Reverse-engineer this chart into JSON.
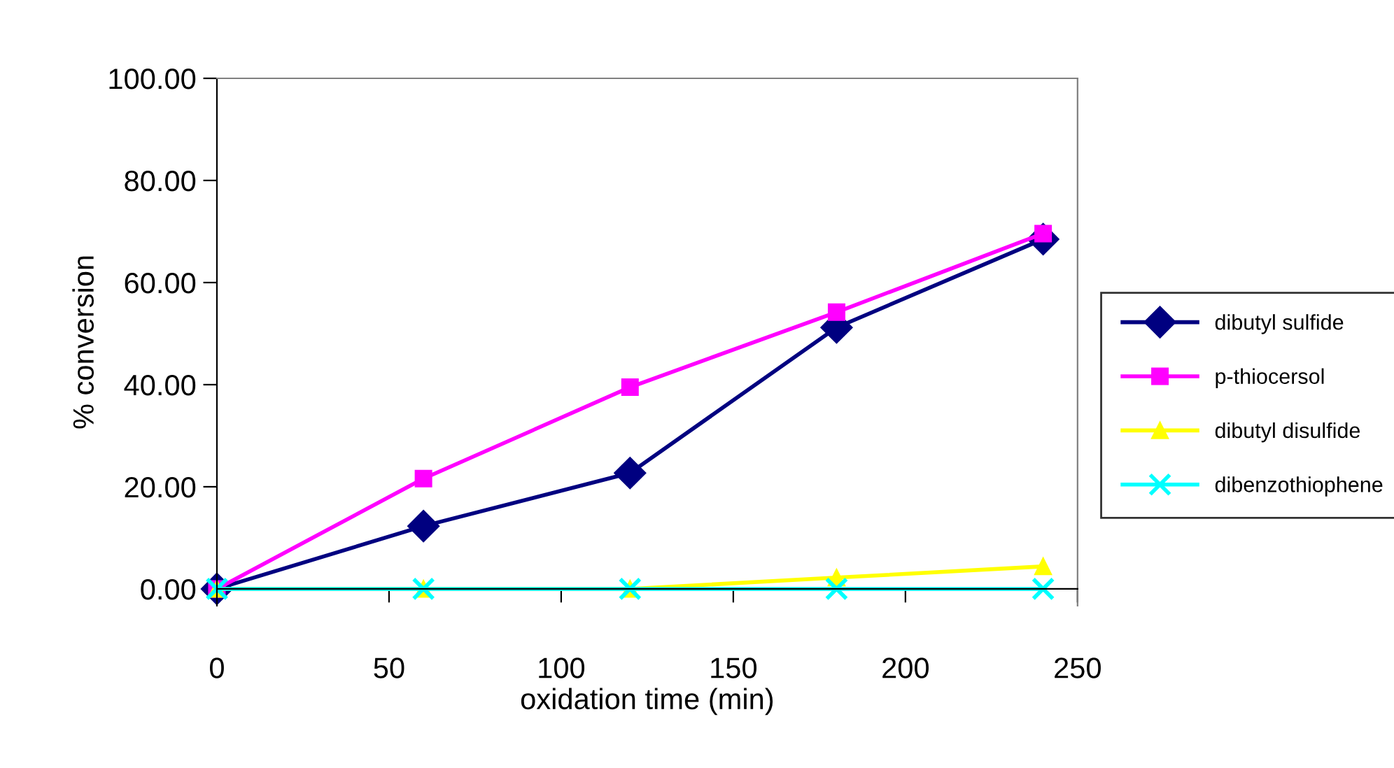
{
  "chart_data": {
    "type": "line",
    "xlabel": "oxidation time (min)",
    "ylabel": "% conversion",
    "x": [
      0,
      60,
      120,
      180,
      240
    ],
    "series": [
      {
        "name": "dibutyl sulfide",
        "color": "#000080",
        "marker": "diamond",
        "values": [
          0,
          12.3,
          22.7,
          51.2,
          68.5
        ]
      },
      {
        "name": "p-thiocersol",
        "color": "#ff00ff",
        "marker": "square",
        "values": [
          0,
          21.6,
          39.5,
          54.2,
          69.6
        ]
      },
      {
        "name": "dibutyl disulfide",
        "color": "#ffff00",
        "marker": "triangle",
        "values": [
          0,
          0,
          0,
          2.2,
          4.4
        ]
      },
      {
        "name": "dibenzothiophene",
        "color": "#00ffff",
        "marker": "cross",
        "values": [
          0,
          0,
          0,
          0,
          0
        ]
      }
    ],
    "xlim": [
      0,
      250
    ],
    "xticks": [
      0,
      50,
      100,
      150,
      200,
      250
    ],
    "ylim": [
      -3.3,
      100
    ],
    "yticks": [
      {
        "value": 0,
        "label": "0.00"
      },
      {
        "value": 20,
        "label": "20.00"
      },
      {
        "value": 40,
        "label": "40.00"
      },
      {
        "value": 60,
        "label": "60.00"
      },
      {
        "value": 80,
        "label": "80.00"
      },
      {
        "value": 100,
        "label": "100.00"
      }
    ],
    "grid": false,
    "legend": "right",
    "line_style": "solid"
  }
}
